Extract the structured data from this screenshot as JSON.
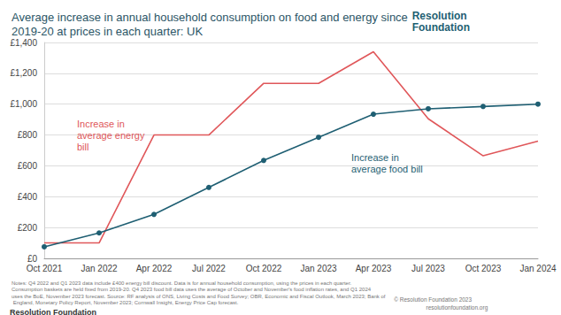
{
  "chart_data": {
    "type": "line",
    "title": "Average increase in annual household consumption on food and energy since 2019-20 at prices in each quarter: UK",
    "categories": [
      "Oct 2021",
      "Jan 2022",
      "Apr 2022",
      "Jul 2022",
      "Oct 2022",
      "Jan 2023",
      "Apr 2023",
      "Jul 2023",
      "Oct 2023",
      "Jan 2024"
    ],
    "series": [
      {
        "name": "Increase in average energy bill",
        "color": "#e0575a",
        "marker": "none",
        "line_style": "solid",
        "values": [
          100,
          100,
          800,
          800,
          1135,
          1135,
          1340,
          905,
          665,
          760
        ]
      },
      {
        "name": "Increase in average food bill",
        "color": "#1f5f73",
        "marker": "circle",
        "line_style": "solid",
        "values": [
          75,
          165,
          285,
          460,
          635,
          785,
          935,
          970,
          985,
          1000
        ]
      }
    ],
    "ylim": [
      0,
      1400
    ],
    "yticks": [
      {
        "value": 0,
        "label": "£0"
      },
      {
        "value": 200,
        "label": "£200"
      },
      {
        "value": 400,
        "label": "£400"
      },
      {
        "value": 600,
        "label": "£600"
      },
      {
        "value": 800,
        "label": "£800"
      },
      {
        "value": 1000,
        "label": "£1,000"
      },
      {
        "value": 1200,
        "label": "£1,200"
      },
      {
        "value": 1400,
        "label": "£1,400"
      }
    ],
    "grid": true,
    "annotations": [
      {
        "text": "Resolution Foundation",
        "color": "#1f5f73"
      },
      {
        "text": "Notes: Q4 2022 and Q1 2023 data include £400 energy bill discount. Data is for annual household consumption, using the prices in each quarter. Consumption baskets are held fixed from 2019-20. Q4 2023 food bill data uses the average of October and November's food inflation rates, and Q1 2024 uses the BoE, November 2023 forecast. Source: RF analysis of ONS, Living Costs and Food Survey; OBR, Economic and Fiscal Outlook, March 2023; Bank of England, Monetary Policy Report, November 2023; Cornwall Insight, Energy Price Cap forecast.",
        "color": "#777777"
      },
      {
        "text": "© Resolution Foundation 2023",
        "color": "#777777"
      },
      {
        "text": "resolutionfoundation.org",
        "color": "#777777"
      },
      {
        "text": "Resolution Foundation",
        "color": "#333333"
      }
    ]
  }
}
